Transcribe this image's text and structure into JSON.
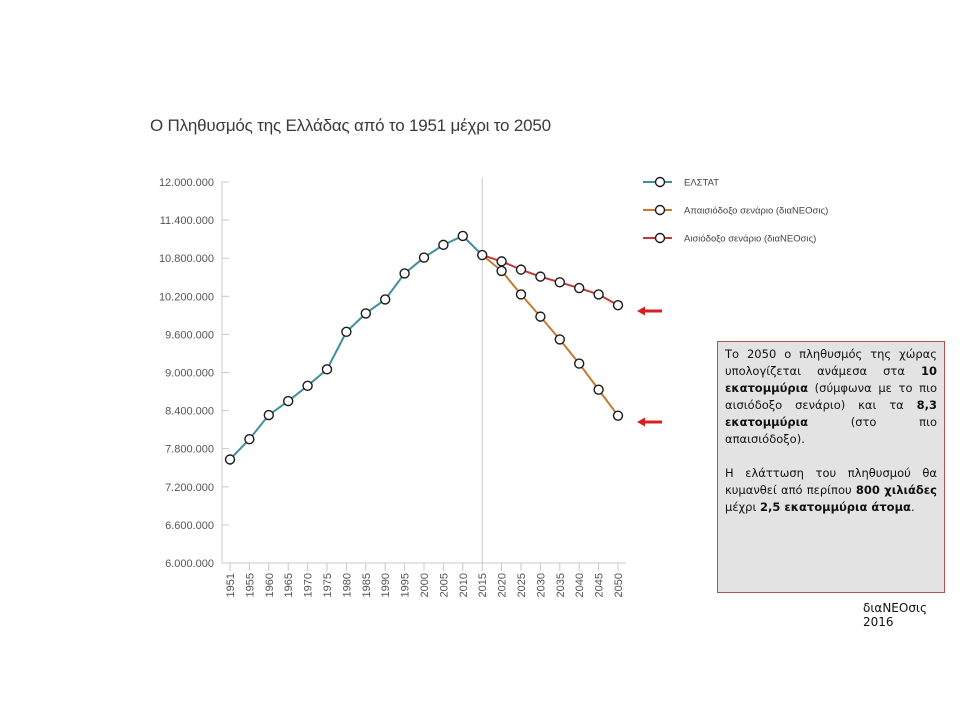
{
  "chart_data": {
    "type": "line",
    "title": "Ο Πληθυσμός της Ελλάδας από το 1951 μέχρι το 2050",
    "categories": [
      "1951",
      "1955",
      "1960",
      "1965",
      "1970",
      "1975",
      "1980",
      "1985",
      "1990",
      "1995",
      "2000",
      "2005",
      "2010",
      "2015",
      "2020",
      "2025",
      "2030",
      "2035",
      "2040",
      "2045",
      "2050"
    ],
    "ylim": [
      6000000,
      12000000
    ],
    "yticks": [
      "6.000.000",
      "6.600.000",
      "7.200.000",
      "7.800.000",
      "8.400.000",
      "9.000.000",
      "9.600.000",
      "10.200.000",
      "10.800.000",
      "11.400.000",
      "12.000.000"
    ],
    "ytick_values": [
      6000000,
      6600000,
      7200000,
      7800000,
      8400000,
      9000000,
      9600000,
      10200000,
      10800000,
      11400000,
      12000000
    ],
    "grid": false,
    "legend_position": "top-right",
    "series": [
      {
        "name": "ΕΛΣΤΑΤ",
        "color": "#3f8f9d",
        "x": [
          "1951",
          "1955",
          "1960",
          "1965",
          "1970",
          "1975",
          "1980",
          "1985",
          "1990",
          "1995",
          "2000",
          "2005",
          "2010",
          "2015"
        ],
        "values": [
          7630000,
          7950000,
          8330000,
          8550000,
          8790000,
          9050000,
          9640000,
          9930000,
          10150000,
          10560000,
          10810000,
          11010000,
          11150000,
          10850000
        ]
      },
      {
        "name": "Απαισιόδοξο σενάριο (διαΝΕΟσις)",
        "color": "#c8782f",
        "x": [
          "2015",
          "2020",
          "2025",
          "2030",
          "2035",
          "2040",
          "2045",
          "2050"
        ],
        "values": [
          10850000,
          10600000,
          10230000,
          9880000,
          9520000,
          9140000,
          8730000,
          8320000
        ]
      },
      {
        "name": "Αισιόδοξο σενάριο (διαΝΕΟσις)",
        "color": "#c0393b",
        "x": [
          "2015",
          "2020",
          "2025",
          "2030",
          "2035",
          "2040",
          "2045",
          "2050"
        ],
        "values": [
          10850000,
          10750000,
          10620000,
          10510000,
          10420000,
          10330000,
          10230000,
          10060000
        ]
      }
    ],
    "vline_at": "2015",
    "arrow_color": "#d42020"
  },
  "note": {
    "p1_a": "Το 2050 ο πληθυσμός της χώρας υπολογίζεται ανάμεσα στα ",
    "p1_b": "10 εκατομμύρια",
    "p1_c": " (σύμφωνα με το πιο αισιόδοξο σενάριο) και τα ",
    "p1_d": "8,3 εκατομμύρια",
    "p1_e": " (στο πιο απαισιόδοξο).",
    "p2_a": "Η ελάττωση του πληθυσμού θα κυμανθεί από περίπου ",
    "p2_b": "800 χιλιάδες",
    "p2_c": " μέχρι ",
    "p2_d": "2,5 εκατομμύρια άτομα",
    "p2_e": "."
  },
  "source": "διαΝΕΟσις 2016"
}
